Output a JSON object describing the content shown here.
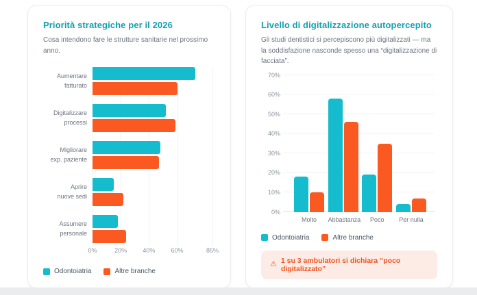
{
  "colors": {
    "teal": "#14bccd",
    "orange": "#fa5a22",
    "title_teal": "#12a0b0",
    "warning_bg": "#fdece5",
    "warning_text": "#f4511e"
  },
  "chart_data": [
    {
      "type": "bar",
      "orientation": "horizontal",
      "title": "Priorità strategiche per il 2026",
      "subtitle": "Cosa intendono fare le strutture sanitarie nel prossimo anno.",
      "categories": [
        "Aumentare fatturato",
        "Digitalizzare processi",
        "Migliorare exp. paziente",
        "Aprire nuove sedi",
        "Assumere personale"
      ],
      "category_lines": [
        [
          "Aumentare",
          "fatturato"
        ],
        [
          "Digitalizzare",
          "processi"
        ],
        [
          "Migliorare",
          "exp. paziente"
        ],
        [
          "Aprire",
          "nuove sedi"
        ],
        [
          "Assumere",
          "personale"
        ]
      ],
      "series": [
        {
          "name": "Odontoiatria",
          "color_key": "teal",
          "values": [
            73,
            52,
            48,
            15,
            18
          ]
        },
        {
          "name": "Altre branche",
          "color_key": "orange",
          "values": [
            60,
            59,
            47,
            22,
            24
          ]
        }
      ],
      "x_ticks": [
        {
          "label": "0%",
          "value": 0
        },
        {
          "label": "20%",
          "value": 20
        },
        {
          "label": "40%",
          "value": 40
        },
        {
          "label": "60%",
          "value": 60
        },
        {
          "label": "85%",
          "value": 85
        }
      ],
      "xlim": [
        0,
        85
      ],
      "unit": "%",
      "grid": true,
      "legend_position": "bottom"
    },
    {
      "type": "bar",
      "orientation": "vertical",
      "title": "Livello di digitalizzazione autopercepito",
      "subtitle": "Gli studi dentistici si percepiscono più digitalizzati — ma la soddisfazione nasconde spesso una “digitalizzazione di facciata”.",
      "categories": [
        "Molto",
        "Abbastanza",
        "Poco",
        "Per nulla"
      ],
      "series": [
        {
          "name": "Odontoiatria",
          "color_key": "teal",
          "values": [
            18,
            58,
            19,
            4
          ]
        },
        {
          "name": "Altre branche",
          "color_key": "orange",
          "values": [
            10,
            46,
            35,
            7
          ]
        }
      ],
      "y_ticks": [
        {
          "label": "0%",
          "value": 0
        },
        {
          "label": "10%",
          "value": 10
        },
        {
          "label": "20%",
          "value": 20
        },
        {
          "label": "30%",
          "value": 30
        },
        {
          "label": "40%",
          "value": 40
        },
        {
          "label": "50%",
          "value": 50
        },
        {
          "label": "60%",
          "value": 60
        },
        {
          "label": "70%",
          "value": 70
        }
      ],
      "ylim": [
        0,
        70
      ],
      "unit": "%",
      "grid": true,
      "legend_position": "bottom"
    }
  ],
  "warning": {
    "icon": "⚠",
    "text": "1 su 3 ambulatori si dichiara “poco digitalizzato”"
  }
}
